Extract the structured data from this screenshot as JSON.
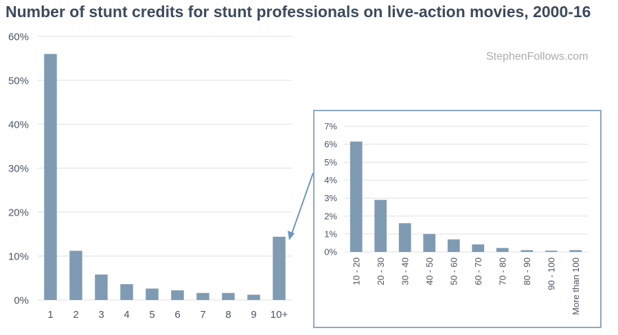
{
  "title": "Number of stunt credits for stunt professionals on live-action movies, 2000-16",
  "watermark": "StephenFollows.com",
  "colors": {
    "bar": "#7f9bb3",
    "grid": "#dcdfe3",
    "text": "#4b5563",
    "frame": "#8aa7c3",
    "arrow": "#6d97c1"
  },
  "chart_data": [
    {
      "type": "bar",
      "title": "",
      "xlabel": "",
      "ylabel": "",
      "categories": [
        "1",
        "2",
        "3",
        "4",
        "5",
        "6",
        "7",
        "8",
        "9",
        "10+"
      ],
      "values": [
        56,
        11.2,
        5.8,
        3.6,
        2.6,
        2.2,
        1.6,
        1.6,
        1.2,
        14.4
      ],
      "ylim": [
        0,
        60
      ],
      "yticks": [
        "0%",
        "10%",
        "20%",
        "30%",
        "40%",
        "50%",
        "60%"
      ],
      "grid": true
    },
    {
      "type": "bar",
      "title": "",
      "xlabel": "",
      "ylabel": "",
      "categories": [
        "10 - 20",
        "20 - 30",
        "30 - 40",
        "40 - 50",
        "50 - 60",
        "60 - 70",
        "70 - 80",
        "80 - 90",
        "90 - 100",
        "More than 100"
      ],
      "values": [
        6.15,
        2.9,
        1.6,
        1.0,
        0.7,
        0.42,
        0.22,
        0.1,
        0.07,
        0.1
      ],
      "ylim": [
        0,
        7
      ],
      "yticks": [
        "0%",
        "1%",
        "2%",
        "3%",
        "4%",
        "5%",
        "6%",
        "7%"
      ],
      "grid": true
    }
  ]
}
